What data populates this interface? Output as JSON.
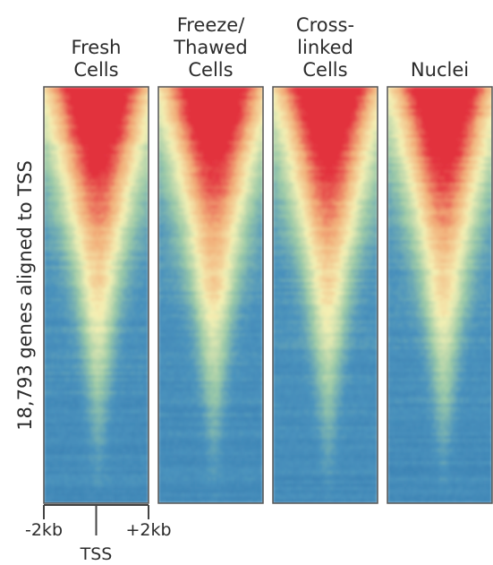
{
  "chart_data": {
    "type": "heatmap",
    "ylabel": "18,793 genes aligned to TSS",
    "x_ticks": [
      "-2kb",
      "TSS",
      "+2kb"
    ],
    "x_range_kb": [
      -2,
      2
    ],
    "rows_count": 18793,
    "row_order": "genes sorted by signal, descending",
    "colormap": [
      "#2b6fa8",
      "#4a92bd",
      "#9ccaa8",
      "#f4f0b4",
      "#f2b07a",
      "#e2303e"
    ],
    "panels": [
      {
        "title": "Fresh\nCells"
      },
      {
        "title": "Freeze/\nThawed\nCells"
      },
      {
        "title": "Cross-\nlinked\nCells"
      },
      {
        "title": "Nuclei"
      }
    ]
  }
}
